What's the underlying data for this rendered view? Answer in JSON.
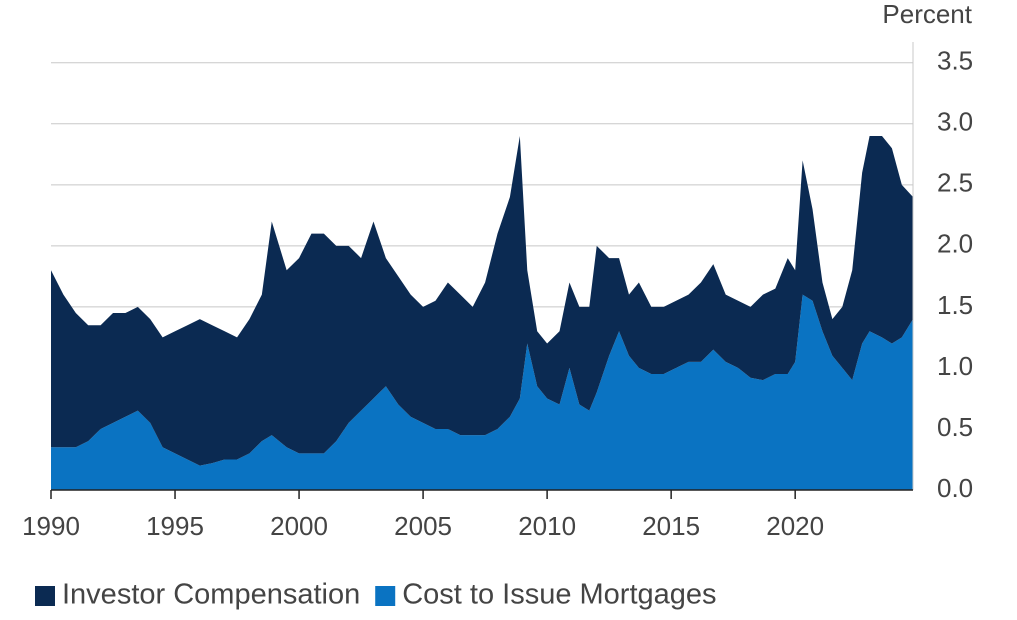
{
  "chart_data": {
    "type": "stacked_area",
    "y_label": "Percent",
    "x": [
      1990,
      1990.5,
      1991,
      1991.5,
      1992,
      1992.5,
      1993,
      1993.5,
      1994,
      1994.5,
      1995,
      1995.5,
      1996,
      1996.5,
      1997,
      1997.5,
      1998,
      1998.5,
      1998.9,
      1999.5,
      2000,
      2000.5,
      2001,
      2001.5,
      2002,
      2002.5,
      2003,
      2003.5,
      2004,
      2004.5,
      2005,
      2005.5,
      2006,
      2006.5,
      2007,
      2007.5,
      2008,
      2008.5,
      2008.9,
      2009.2,
      2009.6,
      2010,
      2010.5,
      2010.9,
      2011.3,
      2011.7,
      2012,
      2012.5,
      2012.9,
      2013.3,
      2013.7,
      2014.2,
      2014.7,
      2015.2,
      2015.7,
      2016.2,
      2016.7,
      2017.2,
      2017.7,
      2018.2,
      2018.7,
      2019.2,
      2019.7,
      2020,
      2020.3,
      2020.7,
      2021.1,
      2021.5,
      2021.9,
      2022.3,
      2022.7,
      2023,
      2023.5,
      2023.9,
      2024.3,
      2024.75
    ],
    "series": [
      {
        "name": "Investor Compensation",
        "color": "#0b2a52",
        "values": [
          1.45,
          1.25,
          1.1,
          0.95,
          0.85,
          0.9,
          0.85,
          0.85,
          0.85,
          0.9,
          1.0,
          1.1,
          1.2,
          1.13,
          1.05,
          1.0,
          1.1,
          1.2,
          1.75,
          1.45,
          1.6,
          1.8,
          1.8,
          1.6,
          1.45,
          1.25,
          1.45,
          1.05,
          1.05,
          1.0,
          0.95,
          1.05,
          1.2,
          1.15,
          1.05,
          1.25,
          1.6,
          1.8,
          2.15,
          0.6,
          0.45,
          0.45,
          0.6,
          0.7,
          0.8,
          0.85,
          1.2,
          0.8,
          0.6,
          0.5,
          0.7,
          0.55,
          0.55,
          0.55,
          0.55,
          0.65,
          0.7,
          0.55,
          0.55,
          0.58,
          0.7,
          0.7,
          0.95,
          0.75,
          1.1,
          0.75,
          0.4,
          0.3,
          0.5,
          0.9,
          1.4,
          1.6,
          1.65,
          1.6,
          1.25,
          1.0
        ]
      },
      {
        "name": "Cost to Issue Mortgages",
        "color": "#0a73c2",
        "values": [
          0.35,
          0.35,
          0.35,
          0.4,
          0.5,
          0.55,
          0.6,
          0.65,
          0.55,
          0.35,
          0.3,
          0.25,
          0.2,
          0.22,
          0.25,
          0.25,
          0.3,
          0.4,
          0.45,
          0.35,
          0.3,
          0.3,
          0.3,
          0.4,
          0.55,
          0.65,
          0.75,
          0.85,
          0.7,
          0.6,
          0.55,
          0.5,
          0.5,
          0.45,
          0.45,
          0.45,
          0.5,
          0.6,
          0.75,
          1.2,
          0.85,
          0.75,
          0.7,
          1.0,
          0.7,
          0.65,
          0.8,
          1.1,
          1.3,
          1.1,
          1.0,
          0.95,
          0.95,
          1.0,
          1.05,
          1.05,
          1.15,
          1.05,
          1.0,
          0.92,
          0.9,
          0.95,
          0.95,
          1.05,
          1.6,
          1.55,
          1.3,
          1.1,
          1.0,
          0.9,
          1.2,
          1.3,
          1.25,
          1.2,
          1.25,
          1.4
        ]
      }
    ],
    "xlim": [
      1990,
      2024.75
    ],
    "xticks": [
      1990,
      1995,
      2000,
      2005,
      2010,
      2015,
      2020
    ],
    "ylim": [
      0,
      3.67
    ],
    "yticks": [
      {
        "value": 0,
        "label": "0.0"
      },
      0.5,
      {
        "value": 1,
        "label": "1.0"
      },
      1.5,
      {
        "value": 2,
        "label": "2.0"
      },
      2.5,
      {
        "value": 3,
        "label": "3.0"
      },
      3.5
    ],
    "grid": true
  }
}
